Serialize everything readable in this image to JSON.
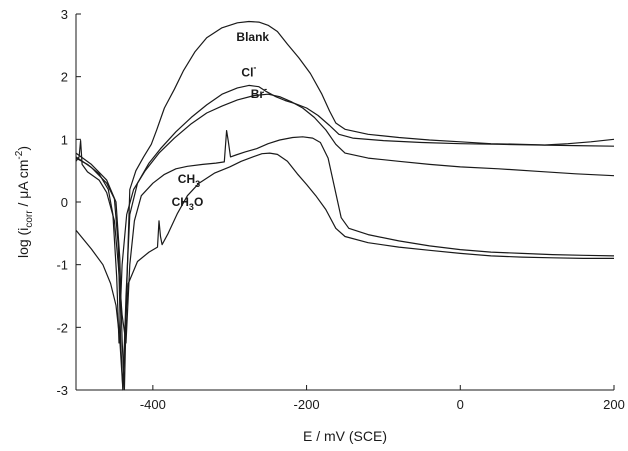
{
  "chart_data": {
    "type": "line",
    "xlabel": "E / mV (SCE)",
    "ylabel": {
      "prefix": "log (i",
      "sub": "corr",
      "middle": " / μA cm",
      "sup": "-2",
      "suffix": ")"
    },
    "xlim": [
      -500,
      200
    ],
    "ylim": [
      -3,
      3
    ],
    "xticks": [
      -400,
      -200,
      0,
      200
    ],
    "yticks": [
      -3,
      -2,
      -1,
      0,
      1,
      2,
      3
    ],
    "grid": false,
    "series": [
      {
        "name": "Blank",
        "label": {
          "base": "Blank",
          "sub": "",
          "tail": "",
          "sup": ""
        },
        "label_at": [
          -270,
          2.57
        ],
        "points": [
          [
            -500,
            0.78
          ],
          [
            -480,
            0.6
          ],
          [
            -460,
            0.35
          ],
          [
            -448,
            0.0
          ],
          [
            -443,
            -0.9
          ],
          [
            -440,
            -2.2
          ],
          [
            -437,
            -3.0
          ],
          [
            -434,
            -1.4
          ],
          [
            -430,
            0.2
          ],
          [
            -422,
            0.5
          ],
          [
            -412,
            0.72
          ],
          [
            -402,
            0.92
          ],
          [
            -395,
            1.15
          ],
          [
            -385,
            1.5
          ],
          [
            -372,
            1.8
          ],
          [
            -360,
            2.1
          ],
          [
            -345,
            2.4
          ],
          [
            -330,
            2.62
          ],
          [
            -310,
            2.78
          ],
          [
            -290,
            2.86
          ],
          [
            -275,
            2.88
          ],
          [
            -262,
            2.87
          ],
          [
            -250,
            2.82
          ],
          [
            -238,
            2.72
          ],
          [
            -225,
            2.52
          ],
          [
            -210,
            2.3
          ],
          [
            -195,
            2.05
          ],
          [
            -180,
            1.72
          ],
          [
            -170,
            1.45
          ],
          [
            -162,
            1.26
          ],
          [
            -150,
            1.16
          ],
          [
            -120,
            1.08
          ],
          [
            -80,
            1.03
          ],
          [
            -40,
            0.99
          ],
          [
            0,
            0.96
          ],
          [
            40,
            0.93
          ],
          [
            80,
            0.92
          ],
          [
            110,
            0.91
          ],
          [
            140,
            0.93
          ],
          [
            170,
            0.96
          ],
          [
            200,
            1.0
          ]
        ]
      },
      {
        "name": "Cl-",
        "label": {
          "base": "Cl",
          "sub": "",
          "tail": "",
          "sup": "-"
        },
        "label_at": [
          -275,
          2.0
        ],
        "points": [
          [
            -500,
            0.72
          ],
          [
            -480,
            0.55
          ],
          [
            -460,
            0.3
          ],
          [
            -450,
            0.05
          ],
          [
            -445,
            -0.7
          ],
          [
            -442,
            -2.2
          ],
          [
            -439,
            -3.0
          ],
          [
            -435,
            -1.5
          ],
          [
            -430,
            -0.2
          ],
          [
            -420,
            0.3
          ],
          [
            -405,
            0.62
          ],
          [
            -390,
            0.85
          ],
          [
            -370,
            1.12
          ],
          [
            -350,
            1.35
          ],
          [
            -330,
            1.55
          ],
          [
            -310,
            1.72
          ],
          [
            -290,
            1.82
          ],
          [
            -275,
            1.86
          ],
          [
            -262,
            1.84
          ],
          [
            -252,
            1.76
          ],
          [
            -240,
            1.68
          ],
          [
            -228,
            1.62
          ],
          [
            -215,
            1.57
          ],
          [
            -200,
            1.5
          ],
          [
            -185,
            1.38
          ],
          [
            -170,
            1.22
          ],
          [
            -158,
            1.08
          ],
          [
            -140,
            1.02
          ],
          [
            -100,
            0.98
          ],
          [
            -50,
            0.95
          ],
          [
            0,
            0.93
          ],
          [
            50,
            0.92
          ],
          [
            100,
            0.91
          ],
          [
            150,
            0.9
          ],
          [
            200,
            0.89
          ]
        ]
      },
      {
        "name": "Br-",
        "label": {
          "base": "Br",
          "sub": "",
          "tail": "",
          "sup": "-"
        },
        "label_at": [
          -262,
          1.66
        ],
        "points": [
          [
            -500,
            0.7
          ],
          [
            -485,
            0.6
          ],
          [
            -470,
            0.45
          ],
          [
            -458,
            0.2
          ],
          [
            -452,
            -0.2
          ],
          [
            -447,
            -1.2
          ],
          [
            -444,
            -2.25
          ],
          [
            -440,
            -1.0
          ],
          [
            -434,
            -0.2
          ],
          [
            -425,
            0.2
          ],
          [
            -410,
            0.5
          ],
          [
            -392,
            0.78
          ],
          [
            -372,
            1.02
          ],
          [
            -350,
            1.25
          ],
          [
            -330,
            1.42
          ],
          [
            -310,
            1.53
          ],
          [
            -290,
            1.63
          ],
          [
            -268,
            1.7
          ],
          [
            -250,
            1.72
          ],
          [
            -235,
            1.68
          ],
          [
            -220,
            1.6
          ],
          [
            -205,
            1.5
          ],
          [
            -190,
            1.35
          ],
          [
            -175,
            1.15
          ],
          [
            -162,
            0.92
          ],
          [
            -150,
            0.78
          ],
          [
            -120,
            0.7
          ],
          [
            -80,
            0.65
          ],
          [
            -40,
            0.6
          ],
          [
            0,
            0.56
          ],
          [
            50,
            0.53
          ],
          [
            100,
            0.49
          ],
          [
            150,
            0.45
          ],
          [
            200,
            0.42
          ]
        ]
      },
      {
        "name": "CH3",
        "label": {
          "base": "CH",
          "sub": "3",
          "tail": "",
          "sup": ""
        },
        "label_at": [
          -353,
          0.3
        ],
        "points": [
          [
            -500,
            0.65
          ],
          [
            -496,
            0.72
          ],
          [
            -494,
            0.98
          ],
          [
            -492,
            0.6
          ],
          [
            -485,
            0.48
          ],
          [
            -470,
            0.35
          ],
          [
            -460,
            0.15
          ],
          [
            -450,
            -0.3
          ],
          [
            -445,
            -1.0
          ],
          [
            -440,
            -1.8
          ],
          [
            -435,
            -2.25
          ],
          [
            -430,
            -1.0
          ],
          [
            -424,
            -0.3
          ],
          [
            -415,
            0.1
          ],
          [
            -400,
            0.3
          ],
          [
            -385,
            0.44
          ],
          [
            -370,
            0.53
          ],
          [
            -355,
            0.57
          ],
          [
            -335,
            0.6
          ],
          [
            -318,
            0.62
          ],
          [
            -307,
            0.64
          ],
          [
            -304,
            1.14
          ],
          [
            -302,
            0.98
          ],
          [
            -299,
            0.72
          ],
          [
            -292,
            0.75
          ],
          [
            -280,
            0.8
          ],
          [
            -265,
            0.85
          ],
          [
            -250,
            0.93
          ],
          [
            -235,
            0.99
          ],
          [
            -218,
            1.03
          ],
          [
            -205,
            1.04
          ],
          [
            -192,
            1.02
          ],
          [
            -182,
            0.95
          ],
          [
            -172,
            0.7
          ],
          [
            -163,
            0.2
          ],
          [
            -155,
            -0.25
          ],
          [
            -145,
            -0.42
          ],
          [
            -120,
            -0.52
          ],
          [
            -80,
            -0.62
          ],
          [
            -40,
            -0.7
          ],
          [
            0,
            -0.76
          ],
          [
            40,
            -0.8
          ],
          [
            80,
            -0.82
          ],
          [
            120,
            -0.84
          ],
          [
            160,
            -0.85
          ],
          [
            200,
            -0.86
          ]
        ]
      },
      {
        "name": "CH3O",
        "label": {
          "base": "CH",
          "sub": "3",
          "tail": "O",
          "sup": ""
        },
        "label_at": [
          -355,
          -0.06
        ],
        "points": [
          [
            -500,
            -0.45
          ],
          [
            -480,
            -0.75
          ],
          [
            -465,
            -1.0
          ],
          [
            -455,
            -1.3
          ],
          [
            -448,
            -1.65
          ],
          [
            -443,
            -2.2
          ],
          [
            -439,
            -3.0
          ],
          [
            -436,
            -2.0
          ],
          [
            -432,
            -1.3
          ],
          [
            -420,
            -0.95
          ],
          [
            -405,
            -0.8
          ],
          [
            -394,
            -0.72
          ],
          [
            -392,
            -0.3
          ],
          [
            -390,
            -0.55
          ],
          [
            -388,
            -0.68
          ],
          [
            -380,
            -0.5
          ],
          [
            -368,
            -0.18
          ],
          [
            -355,
            0.1
          ],
          [
            -340,
            0.3
          ],
          [
            -320,
            0.46
          ],
          [
            -300,
            0.56
          ],
          [
            -285,
            0.65
          ],
          [
            -270,
            0.72
          ],
          [
            -258,
            0.77
          ],
          [
            -248,
            0.78
          ],
          [
            -238,
            0.76
          ],
          [
            -225,
            0.65
          ],
          [
            -212,
            0.45
          ],
          [
            -200,
            0.28
          ],
          [
            -188,
            0.1
          ],
          [
            -175,
            -0.12
          ],
          [
            -162,
            -0.42
          ],
          [
            -150,
            -0.55
          ],
          [
            -120,
            -0.65
          ],
          [
            -80,
            -0.72
          ],
          [
            -40,
            -0.77
          ],
          [
            0,
            -0.82
          ],
          [
            40,
            -0.86
          ],
          [
            80,
            -0.88
          ],
          [
            120,
            -0.89
          ],
          [
            160,
            -0.9
          ],
          [
            200,
            -0.9
          ]
        ]
      }
    ]
  }
}
